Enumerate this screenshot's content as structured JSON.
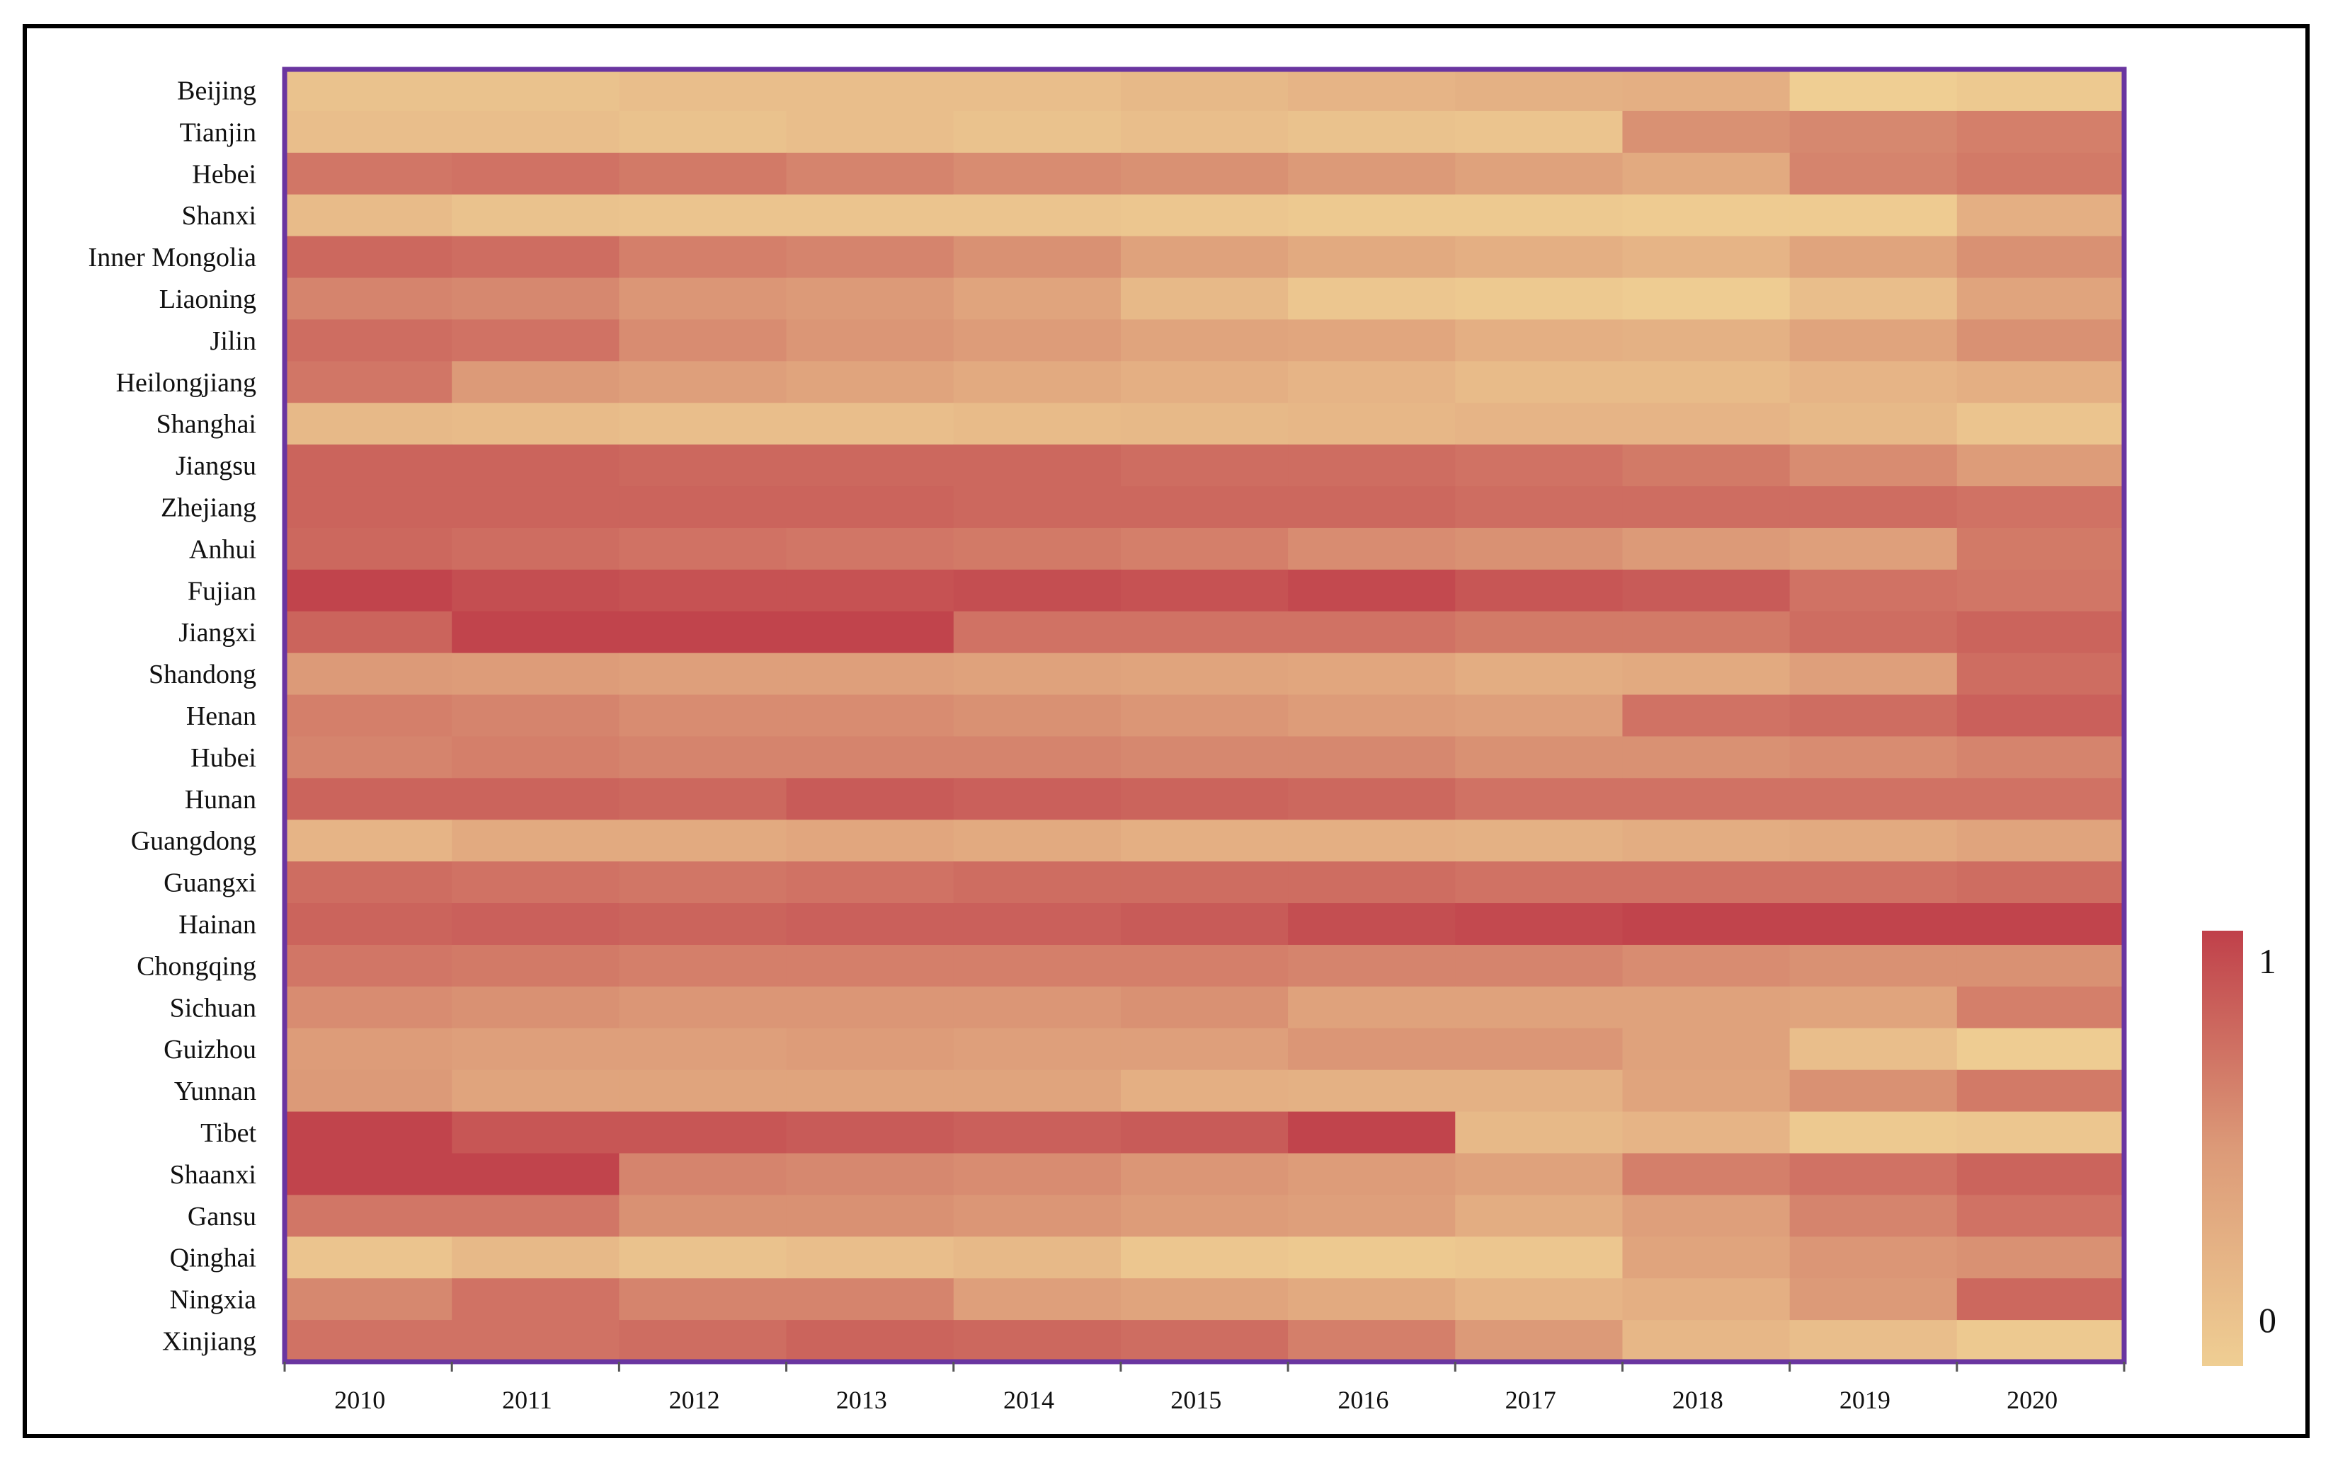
{
  "chart_data": {
    "type": "heatmap",
    "title": "",
    "xlabel": "",
    "ylabel": "",
    "x": [
      "2010",
      "2011",
      "2012",
      "2013",
      "2014",
      "2015",
      "2016",
      "2017",
      "2018",
      "2019",
      "2020"
    ],
    "y": [
      "Beijing",
      "Tianjin",
      "Hebei",
      "Shanxi",
      "Inner Mongolia",
      "Liaoning",
      "Jilin",
      "Heilongjiang",
      "Shanghai",
      "Jiangsu",
      "Zhejiang",
      "Anhui",
      "Fujian",
      "Jiangxi",
      "Shandong",
      "Henan",
      "Hubei",
      "Hunan",
      "Guangdong",
      "Guangxi",
      "Hainan",
      "Chongqing",
      "Sichuan",
      "Guizhou",
      "Yunnan",
      "Tibet",
      "Shaanxi",
      "Gansu",
      "Qinghai",
      "Ningxia",
      "Xinjiang"
    ],
    "values": [
      [
        0.12,
        0.12,
        0.15,
        0.15,
        0.15,
        0.2,
        0.25,
        0.28,
        0.3,
        0.0,
        0.05
      ],
      [
        0.15,
        0.15,
        0.12,
        0.15,
        0.12,
        0.15,
        0.12,
        0.1,
        0.55,
        0.6,
        0.65
      ],
      [
        0.7,
        0.72,
        0.68,
        0.62,
        0.58,
        0.55,
        0.5,
        0.42,
        0.35,
        0.62,
        0.68
      ],
      [
        0.18,
        0.12,
        0.1,
        0.1,
        0.1,
        0.08,
        0.05,
        0.05,
        0.03,
        0.03,
        0.3
      ],
      [
        0.78,
        0.75,
        0.65,
        0.62,
        0.55,
        0.42,
        0.35,
        0.3,
        0.25,
        0.4,
        0.55
      ],
      [
        0.62,
        0.6,
        0.52,
        0.5,
        0.4,
        0.2,
        0.08,
        0.05,
        0.02,
        0.15,
        0.4
      ],
      [
        0.75,
        0.72,
        0.58,
        0.52,
        0.48,
        0.4,
        0.38,
        0.3,
        0.28,
        0.4,
        0.55
      ],
      [
        0.7,
        0.5,
        0.45,
        0.4,
        0.35,
        0.3,
        0.25,
        0.18,
        0.18,
        0.25,
        0.3
      ],
      [
        0.2,
        0.18,
        0.15,
        0.15,
        0.18,
        0.2,
        0.22,
        0.25,
        0.25,
        0.2,
        0.1
      ],
      [
        0.8,
        0.8,
        0.78,
        0.78,
        0.78,
        0.75,
        0.75,
        0.72,
        0.68,
        0.58,
        0.48
      ],
      [
        0.8,
        0.8,
        0.8,
        0.8,
        0.78,
        0.78,
        0.78,
        0.75,
        0.75,
        0.75,
        0.72
      ],
      [
        0.78,
        0.75,
        0.72,
        0.7,
        0.68,
        0.65,
        0.58,
        0.55,
        0.5,
        0.45,
        0.68
      ],
      [
        0.98,
        0.92,
        0.9,
        0.9,
        0.92,
        0.9,
        0.95,
        0.88,
        0.85,
        0.72,
        0.7
      ],
      [
        0.8,
        0.98,
        0.98,
        0.98,
        0.72,
        0.72,
        0.72,
        0.68,
        0.68,
        0.75,
        0.8
      ],
      [
        0.5,
        0.48,
        0.45,
        0.45,
        0.42,
        0.4,
        0.38,
        0.32,
        0.35,
        0.45,
        0.75
      ],
      [
        0.65,
        0.62,
        0.58,
        0.58,
        0.55,
        0.52,
        0.48,
        0.45,
        0.72,
        0.75,
        0.82
      ],
      [
        0.62,
        0.65,
        0.62,
        0.62,
        0.62,
        0.6,
        0.6,
        0.55,
        0.55,
        0.58,
        0.62
      ],
      [
        0.8,
        0.8,
        0.78,
        0.85,
        0.82,
        0.8,
        0.78,
        0.72,
        0.72,
        0.72,
        0.72
      ],
      [
        0.25,
        0.35,
        0.35,
        0.38,
        0.35,
        0.3,
        0.3,
        0.28,
        0.32,
        0.35,
        0.4
      ],
      [
        0.75,
        0.72,
        0.7,
        0.72,
        0.75,
        0.75,
        0.75,
        0.72,
        0.72,
        0.72,
        0.75
      ],
      [
        0.8,
        0.82,
        0.8,
        0.82,
        0.82,
        0.85,
        0.92,
        0.95,
        0.98,
        0.98,
        0.98
      ],
      [
        0.7,
        0.68,
        0.65,
        0.65,
        0.65,
        0.65,
        0.62,
        0.62,
        0.58,
        0.55,
        0.55
      ],
      [
        0.58,
        0.55,
        0.52,
        0.52,
        0.52,
        0.55,
        0.42,
        0.42,
        0.42,
        0.4,
        0.65
      ],
      [
        0.48,
        0.45,
        0.45,
        0.48,
        0.45,
        0.45,
        0.52,
        0.52,
        0.42,
        0.15,
        0.02
      ],
      [
        0.5,
        0.4,
        0.4,
        0.4,
        0.4,
        0.3,
        0.28,
        0.28,
        0.4,
        0.55,
        0.68
      ],
      [
        0.98,
        0.88,
        0.88,
        0.85,
        0.82,
        0.85,
        0.98,
        0.2,
        0.25,
        0.05,
        0.08
      ],
      [
        0.98,
        0.98,
        0.62,
        0.6,
        0.58,
        0.52,
        0.48,
        0.42,
        0.65,
        0.72,
        0.8
      ],
      [
        0.7,
        0.7,
        0.55,
        0.55,
        0.52,
        0.48,
        0.45,
        0.32,
        0.45,
        0.62,
        0.72
      ],
      [
        0.1,
        0.2,
        0.12,
        0.15,
        0.2,
        0.08,
        0.05,
        0.08,
        0.4,
        0.52,
        0.55
      ],
      [
        0.6,
        0.72,
        0.62,
        0.62,
        0.45,
        0.4,
        0.35,
        0.25,
        0.3,
        0.5,
        0.78
      ],
      [
        0.72,
        0.72,
        0.75,
        0.8,
        0.78,
        0.75,
        0.65,
        0.5,
        0.22,
        0.15,
        0.05
      ]
    ],
    "colorscale": {
      "min": 0,
      "max": 1,
      "low_color": "#EFCE93",
      "mid_color": "#DC9A78",
      "high_color": "#C0404A",
      "tick_labels": [
        "0",
        "1"
      ]
    },
    "frame_color": "#6A35A0",
    "grid": false,
    "legend_position": "right"
  }
}
